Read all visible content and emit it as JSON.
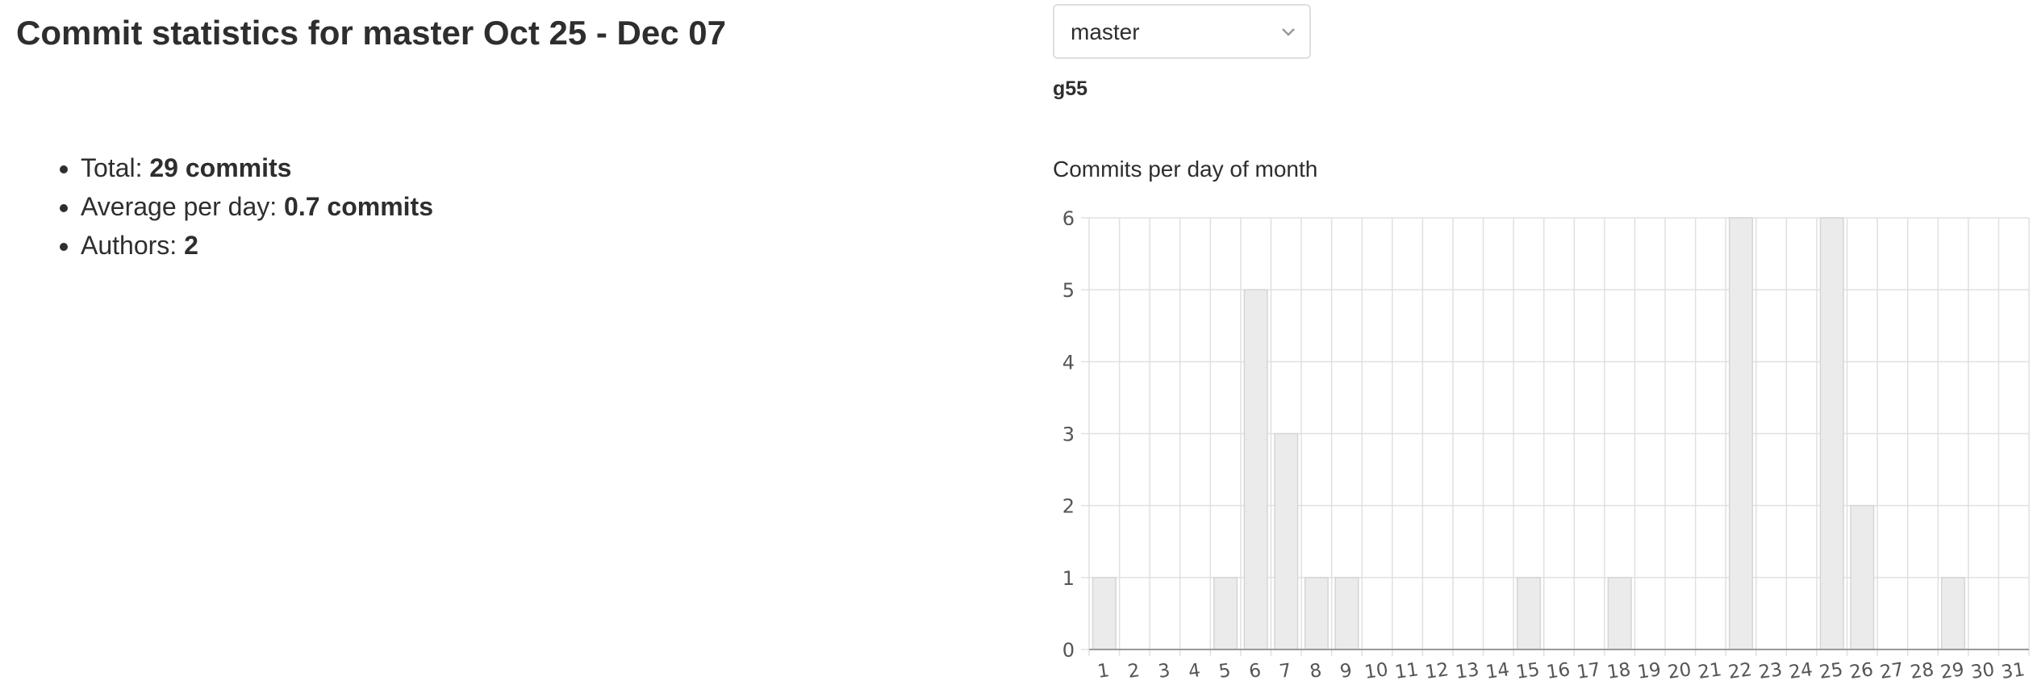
{
  "header": {
    "title": "Commit statistics for master Oct 25 - Dec 07"
  },
  "stats": [
    {
      "label": "Total: ",
      "value": "29 commits"
    },
    {
      "label": "Average per day: ",
      "value": "0.7 commits"
    },
    {
      "label": "Authors: ",
      "value": "2"
    }
  ],
  "branch_selector": {
    "selected": "master",
    "icon": "chevron-down-icon"
  },
  "project_name": "g55",
  "chart": {
    "title": "Commits per day of month"
  },
  "chart_data": {
    "type": "bar",
    "title": "Commits per day of month",
    "xlabel": "",
    "ylabel": "",
    "categories": [
      "1",
      "2",
      "3",
      "4",
      "5",
      "6",
      "7",
      "8",
      "9",
      "10",
      "11",
      "12",
      "13",
      "14",
      "15",
      "16",
      "17",
      "18",
      "19",
      "20",
      "21",
      "22",
      "23",
      "24",
      "25",
      "26",
      "27",
      "28",
      "29",
      "30",
      "31"
    ],
    "values": [
      1,
      0,
      0,
      0,
      1,
      5,
      3,
      1,
      1,
      0,
      0,
      0,
      0,
      0,
      1,
      0,
      0,
      1,
      0,
      0,
      0,
      6,
      0,
      0,
      6,
      2,
      0,
      0,
      1,
      0,
      0
    ],
    "yticks": [
      0,
      1,
      2,
      3,
      4,
      5,
      6
    ],
    "ylim": [
      0,
      6
    ],
    "grid": true,
    "colors": {
      "bar_fill": "#ebebeb",
      "bar_stroke": "#d5d5d5",
      "grid": "#e0e0e0",
      "axis": "#9a9a9a"
    }
  }
}
